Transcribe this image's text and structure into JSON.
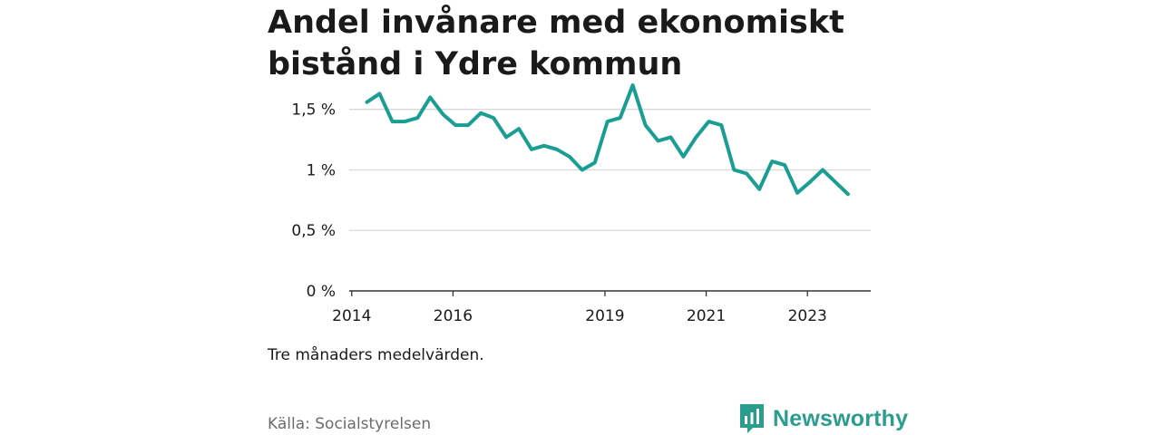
{
  "title": "Andel invånare med ekonomiskt bistånd i Ydre kommun",
  "note": "Tre månaders medelvärden.",
  "source": "Källa: Socialstyrelsen",
  "brand": {
    "name": "Newsworthy",
    "icon": "bar-chart-icon",
    "color": "#2a9d8f"
  },
  "chart_data": {
    "type": "line",
    "title": "Andel invånare med ekonomiskt bistånd i Ydre kommun",
    "xlabel": "",
    "ylabel": "",
    "x_ticks": [
      {
        "value": 2014.0,
        "label": "2014"
      },
      {
        "value": 2016.0,
        "label": "2016"
      },
      {
        "value": 2019.0,
        "label": "2019"
      },
      {
        "value": 2021.0,
        "label": "2021"
      },
      {
        "value": 2023.0,
        "label": "2023"
      }
    ],
    "y_ticks": [
      {
        "value": 0,
        "label": "0 %"
      },
      {
        "value": 0.5,
        "label": "0,5 %"
      },
      {
        "value": 1.0,
        "label": "1 %"
      },
      {
        "value": 1.5,
        "label": "1,5 %"
      }
    ],
    "xlim": [
      2013.95,
      2024.25
    ],
    "ylim": [
      0,
      1.73
    ],
    "grid": true,
    "line_color": "#1a9e93",
    "series": [
      {
        "values": [
          [
            2014.3,
            1.56
          ],
          [
            2014.55,
            1.63
          ],
          [
            2014.8,
            1.4
          ],
          [
            2015.05,
            1.4
          ],
          [
            2015.3,
            1.43
          ],
          [
            2015.55,
            1.6
          ],
          [
            2015.8,
            1.46
          ],
          [
            2016.05,
            1.37
          ],
          [
            2016.3,
            1.37
          ],
          [
            2016.55,
            1.47
          ],
          [
            2016.8,
            1.43
          ],
          [
            2017.05,
            1.27
          ],
          [
            2017.3,
            1.34
          ],
          [
            2017.55,
            1.17
          ],
          [
            2017.8,
            1.2
          ],
          [
            2018.05,
            1.17
          ],
          [
            2018.3,
            1.11
          ],
          [
            2018.55,
            1.0
          ],
          [
            2018.8,
            1.06
          ],
          [
            2019.05,
            1.4
          ],
          [
            2019.3,
            1.43
          ],
          [
            2019.55,
            1.7
          ],
          [
            2019.8,
            1.37
          ],
          [
            2020.05,
            1.24
          ],
          [
            2020.3,
            1.27
          ],
          [
            2020.55,
            1.11
          ],
          [
            2020.8,
            1.27
          ],
          [
            2021.05,
            1.4
          ],
          [
            2021.3,
            1.37
          ],
          [
            2021.55,
            1.0
          ],
          [
            2021.8,
            0.97
          ],
          [
            2022.05,
            0.84
          ],
          [
            2022.3,
            1.07
          ],
          [
            2022.55,
            1.04
          ],
          [
            2022.8,
            0.81
          ],
          [
            2023.05,
            0.9
          ],
          [
            2023.3,
            1.0
          ],
          [
            2023.55,
            0.9
          ],
          [
            2023.8,
            0.8
          ]
        ]
      }
    ]
  }
}
